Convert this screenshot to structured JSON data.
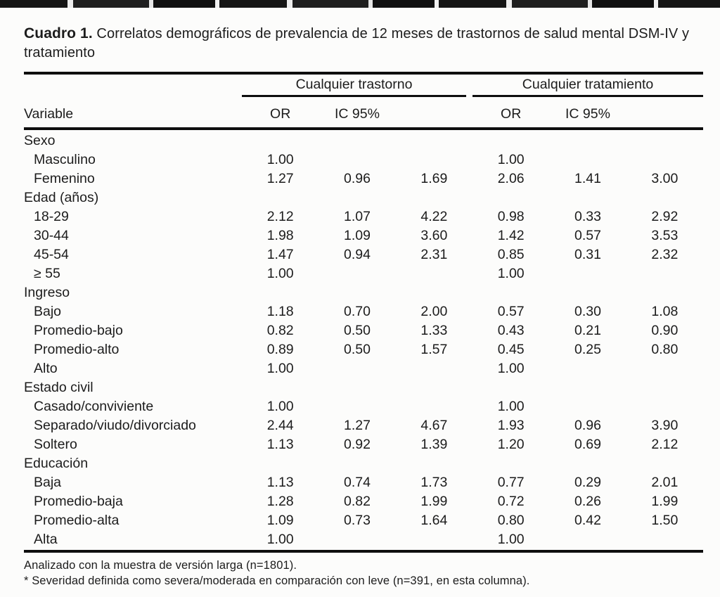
{
  "colors": {
    "background": "#fcfcfb",
    "text": "#1c1c1c",
    "rule": "#0e0e0e"
  },
  "title": {
    "label": "Cuadro 1.",
    "text": "Correlatos demográficos de prevalencia de 12 meses de trastornos de salud mental DSM-IV y tratamiento"
  },
  "table": {
    "variable_header": "Variable",
    "groups": [
      {
        "label": "Cualquier trastorno"
      },
      {
        "label": "Cualquier tratamiento"
      }
    ],
    "subheaders": [
      "OR",
      "IC 95%",
      "OR",
      "IC 95%"
    ],
    "rows": [
      {
        "label": "Sexo",
        "indent": false,
        "values": [
          "",
          "",
          "",
          "",
          "",
          ""
        ]
      },
      {
        "label": "Masculino",
        "indent": true,
        "values": [
          "1.00",
          "",
          "",
          "1.00",
          "",
          ""
        ]
      },
      {
        "label": "Femenino",
        "indent": true,
        "values": [
          "1.27",
          "0.96",
          "1.69",
          "2.06",
          "1.41",
          "3.00"
        ]
      },
      {
        "label": "Edad (años)",
        "indent": false,
        "values": [
          "",
          "",
          "",
          "",
          "",
          ""
        ]
      },
      {
        "label": "18-29",
        "indent": true,
        "values": [
          "2.12",
          "1.07",
          "4.22",
          "0.98",
          "0.33",
          "2.92"
        ]
      },
      {
        "label": "30-44",
        "indent": true,
        "values": [
          "1.98",
          "1.09",
          "3.60",
          "1.42",
          "0.57",
          "3.53"
        ]
      },
      {
        "label": "45-54",
        "indent": true,
        "values": [
          "1.47",
          "0.94",
          "2.31",
          "0.85",
          "0.31",
          "2.32"
        ]
      },
      {
        "label": "≥ 55",
        "indent": true,
        "values": [
          "1.00",
          "",
          "",
          "1.00",
          "",
          ""
        ]
      },
      {
        "label": "Ingreso",
        "indent": false,
        "values": [
          "",
          "",
          "",
          "",
          "",
          ""
        ]
      },
      {
        "label": "Bajo",
        "indent": true,
        "values": [
          "1.18",
          "0.70",
          "2.00",
          "0.57",
          "0.30",
          "1.08"
        ]
      },
      {
        "label": "Promedio-bajo",
        "indent": true,
        "values": [
          "0.82",
          "0.50",
          "1.33",
          "0.43",
          "0.21",
          "0.90"
        ]
      },
      {
        "label": "Promedio-alto",
        "indent": true,
        "values": [
          "0.89",
          "0.50",
          "1.57",
          "0.45",
          "0.25",
          "0.80"
        ]
      },
      {
        "label": "Alto",
        "indent": true,
        "values": [
          "1.00",
          "",
          "",
          "1.00",
          "",
          ""
        ]
      },
      {
        "label": "Estado civil",
        "indent": false,
        "values": [
          "",
          "",
          "",
          "",
          "",
          ""
        ]
      },
      {
        "label": "Casado/conviviente",
        "indent": true,
        "values": [
          "1.00",
          "",
          "",
          "1.00",
          "",
          ""
        ]
      },
      {
        "label": "Separado/viudo/divorciado",
        "indent": true,
        "values": [
          "2.44",
          "1.27",
          "4.67",
          "1.93",
          "0.96",
          "3.90"
        ]
      },
      {
        "label": "Soltero",
        "indent": true,
        "values": [
          "1.13",
          "0.92",
          "1.39",
          "1.20",
          "0.69",
          "2.12"
        ]
      },
      {
        "label": "Educación",
        "indent": false,
        "values": [
          "",
          "",
          "",
          "",
          "",
          ""
        ]
      },
      {
        "label": "Baja",
        "indent": true,
        "values": [
          "1.13",
          "0.74",
          "1.73",
          "0.77",
          "0.29",
          "2.01"
        ]
      },
      {
        "label": "Promedio-baja",
        "indent": true,
        "values": [
          "1.28",
          "0.82",
          "1.99",
          "0.72",
          "0.26",
          "1.99"
        ]
      },
      {
        "label": "Promedio-alta",
        "indent": true,
        "values": [
          "1.09",
          "0.73",
          "1.64",
          "0.80",
          "0.42",
          "1.50"
        ]
      },
      {
        "label": "Alta",
        "indent": true,
        "values": [
          "1.00",
          "",
          "",
          "1.00",
          "",
          ""
        ]
      }
    ]
  },
  "footnotes": [
    "Analizado con la muestra de versión larga (n=1801).",
    "* Severidad definida como severa/moderada en comparación con leve (n=391, en esta columna)."
  ]
}
